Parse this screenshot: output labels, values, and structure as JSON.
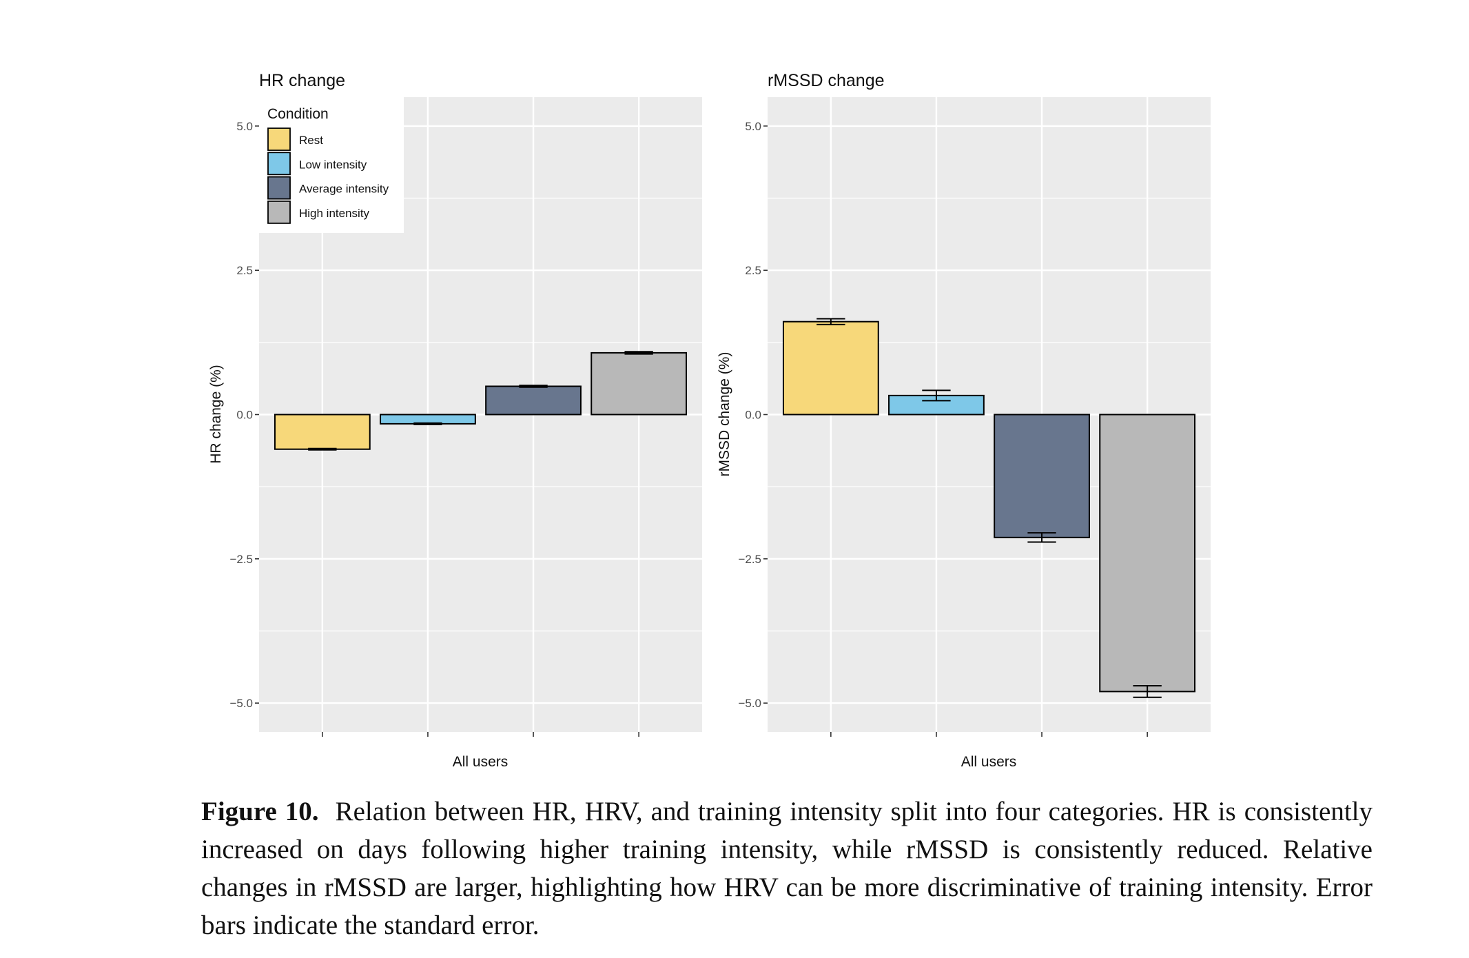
{
  "chart_data": [
    {
      "type": "bar",
      "title": "HR change",
      "xlabel": "All users",
      "ylabel": "HR change (%)",
      "ylim": [
        -5.5,
        5.5
      ],
      "yticks": [
        5.0,
        2.5,
        0.0,
        -2.5,
        -5.0
      ],
      "ytick_labels": [
        "5.0",
        "2.5",
        "0.0",
        "−2.5",
        "−5.0"
      ],
      "grid": true,
      "categories": [
        "Rest",
        "Low intensity",
        "Average intensity",
        "High intensity"
      ],
      "values": [
        -0.6,
        -0.16,
        0.49,
        1.07
      ],
      "errors": [
        0.012,
        0.012,
        0.015,
        0.02
      ]
    },
    {
      "type": "bar",
      "title": "rMSSD change",
      "xlabel": "All users",
      "ylabel": "rMSSD change (%)",
      "ylim": [
        -5.5,
        5.5
      ],
      "yticks": [
        5.0,
        2.5,
        0.0,
        -2.5,
        -5.0
      ],
      "ytick_labels": [
        "5.0",
        "2.5",
        "0.0",
        "−2.5",
        "−5.0"
      ],
      "grid": true,
      "categories": [
        "Rest",
        "Low intensity",
        "Average intensity",
        "High intensity"
      ],
      "values": [
        1.61,
        0.33,
        -2.13,
        -4.8
      ],
      "errors": [
        0.05,
        0.09,
        0.08,
        0.1
      ]
    }
  ],
  "legend": {
    "title": "Condition",
    "placement": "top-left",
    "items": [
      {
        "label": "Rest",
        "color": "#f7d87a"
      },
      {
        "label": "Low intensity",
        "color": "#7ec8e8"
      },
      {
        "label": "Average intensity",
        "color": "#68768e"
      },
      {
        "label": "High intensity",
        "color": "#b8b8b8"
      }
    ]
  },
  "colors": {
    "panel_background": "#ebebeb",
    "gridline": "#ffffff",
    "bar_outline": "#000000"
  },
  "caption": {
    "label": "Figure 10.",
    "text": "Relation between HR, HRV, and training intensity split into four categories.  HR is consistently increased on days following higher training intensity, while rMSSD is consistently reduced. Relative changes in rMSSD are larger, highlighting how HRV can be more discriminative of training intensity. Error bars indicate the standard error."
  }
}
